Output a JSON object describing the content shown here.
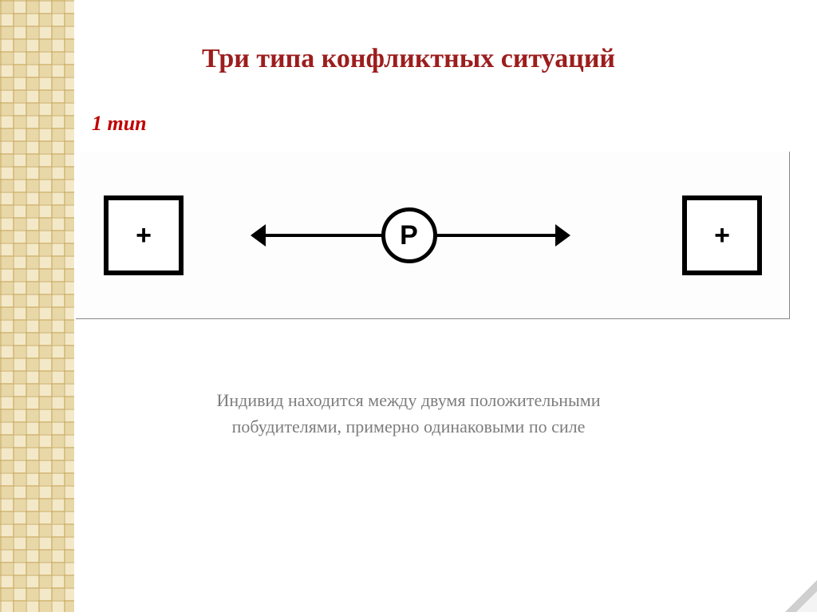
{
  "title": {
    "text": "Три типа конфликтных ситуаций",
    "color": "#9c1d1d",
    "fontsize": 34
  },
  "subtitle": {
    "text": "1 тип",
    "color": "#c00000",
    "fontsize": 26
  },
  "diagram": {
    "left_box": {
      "label": "+",
      "size": 100,
      "border_width": 6
    },
    "right_box": {
      "label": "+",
      "size": 100,
      "border_width": 6
    },
    "center_circle": {
      "label": "P",
      "size": 70,
      "border_width": 5,
      "fontsize": 34
    },
    "symbol_fontsize": 34,
    "arrow_thickness": 4,
    "arrow_length": 160,
    "arrowhead_size": 14,
    "colors": {
      "stroke": "#000000",
      "fill": "#ffffff"
    }
  },
  "caption": {
    "line1": "Индивид находится между двумя положительными",
    "line2": "побудителями, примерно одинаковыми по силе",
    "color": "#7d7d7d",
    "fontsize": 22
  },
  "sidebar": {
    "bg_light": "#f3e9c9",
    "bg_mid": "#e8d8a8",
    "bg_dark": "#c8a860",
    "cell_size": 16
  },
  "corner_fold": {
    "light": "#f4f4f4",
    "shadow": "#cfcfcf"
  }
}
